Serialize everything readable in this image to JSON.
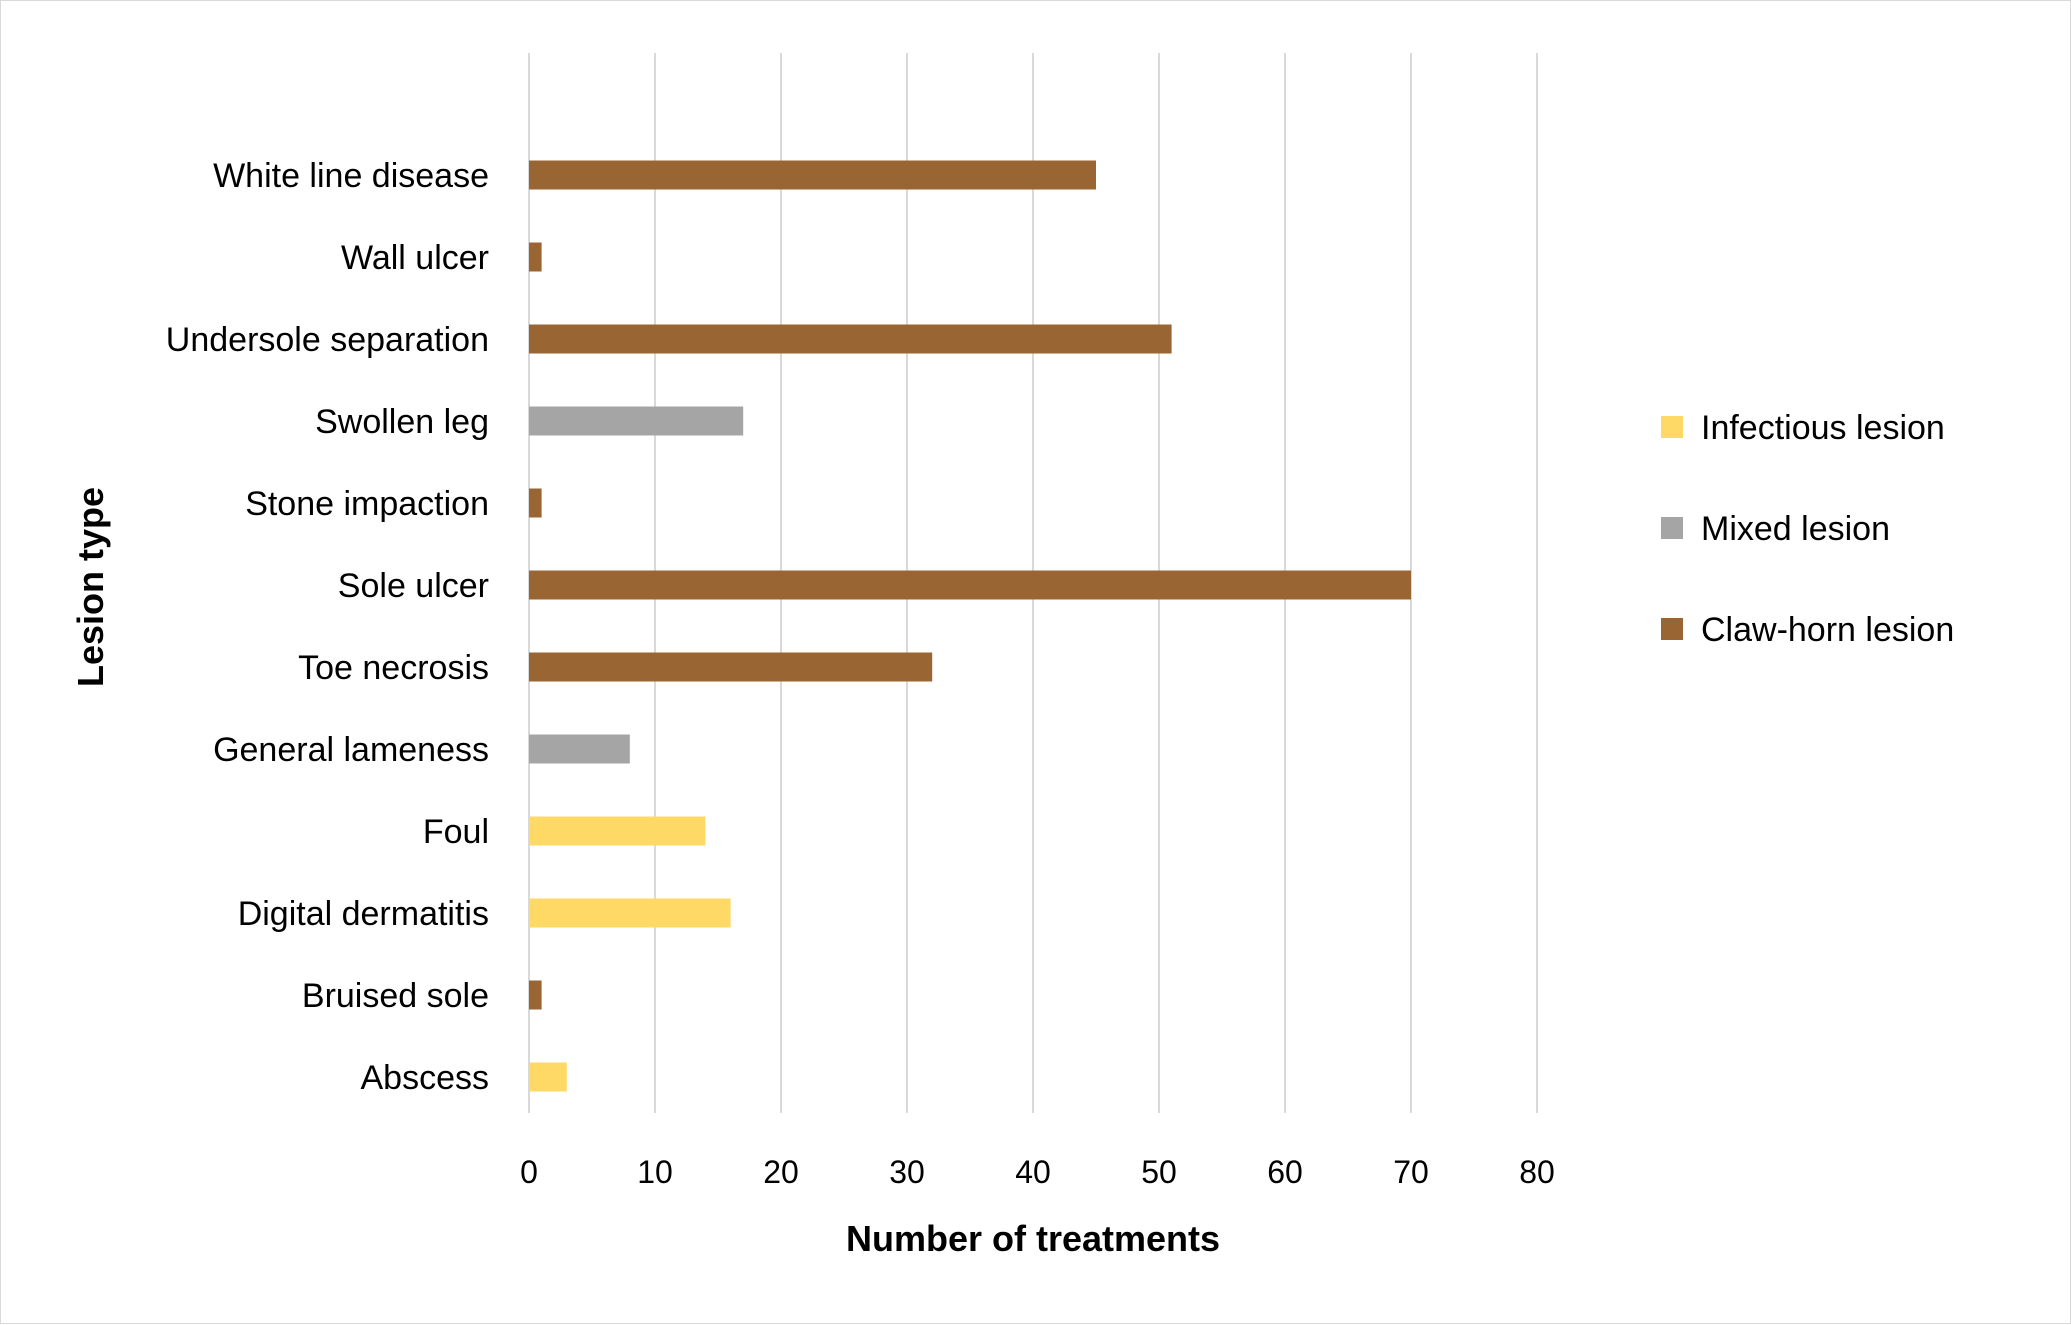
{
  "chart_data": {
    "type": "bar",
    "orientation": "horizontal",
    "title": "",
    "xlabel": "Number of treatments",
    "ylabel": "Lesion type",
    "xlim": [
      0,
      80
    ],
    "x_ticks": [
      0,
      10,
      20,
      30,
      40,
      50,
      60,
      70,
      80
    ],
    "grid": "vertical",
    "legend_position": "right",
    "categories": [
      "White line disease",
      "Wall ulcer",
      "Undersole separation",
      "Swollen leg",
      "Stone impaction",
      "Sole ulcer",
      "Toe necrosis",
      "General lameness",
      "Foul",
      "Digital dermatitis",
      "Bruised sole",
      "Abscess"
    ],
    "values": [
      45,
      1,
      51,
      17,
      1,
      70,
      32,
      8,
      14,
      16,
      1,
      3
    ],
    "groups": [
      "Claw-horn lesion",
      "Claw-horn lesion",
      "Claw-horn lesion",
      "Mixed lesion",
      "Claw-horn lesion",
      "Claw-horn lesion",
      "Claw-horn lesion",
      "Mixed lesion",
      "Infectious lesion",
      "Infectious lesion",
      "Claw-horn lesion",
      "Infectious lesion"
    ],
    "legend": [
      {
        "name": "Infectious lesion",
        "color": "#FFD966"
      },
      {
        "name": "Mixed lesion",
        "color": "#A5A5A5"
      },
      {
        "name": "Claw-horn lesion",
        "color": "#996633"
      }
    ]
  }
}
